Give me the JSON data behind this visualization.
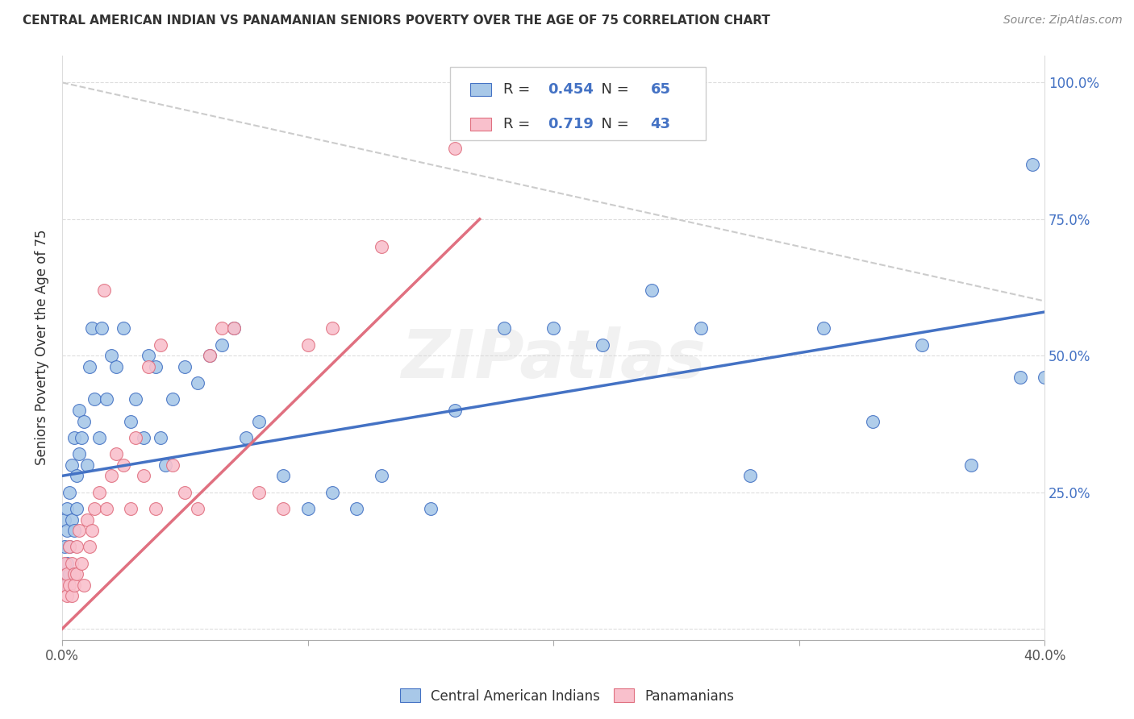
{
  "title": "CENTRAL AMERICAN INDIAN VS PANAMANIAN SENIORS POVERTY OVER THE AGE OF 75 CORRELATION CHART",
  "source": "Source: ZipAtlas.com",
  "ylabel": "Seniors Poverty Over the Age of 75",
  "xlim": [
    0.0,
    0.4
  ],
  "ylim": [
    -0.02,
    1.05
  ],
  "x_ticks": [
    0.0,
    0.1,
    0.2,
    0.3,
    0.4
  ],
  "y_ticks": [
    0.0,
    0.25,
    0.5,
    0.75,
    1.0
  ],
  "y_tick_labels": [
    "",
    "25.0%",
    "50.0%",
    "75.0%",
    "100.0%"
  ],
  "blue_color": "#a8c8e8",
  "blue_edge_color": "#4472c4",
  "pink_color": "#f9c0cc",
  "pink_edge_color": "#e07080",
  "blue_line_color": "#4472c4",
  "pink_line_color": "#e07080",
  "diagonal_color": "#cccccc",
  "R_blue": 0.454,
  "N_blue": 65,
  "R_pink": 0.719,
  "N_pink": 43,
  "watermark": "ZIPatlas",
  "blue_scatter_x": [
    0.001,
    0.001,
    0.001,
    0.002,
    0.002,
    0.002,
    0.002,
    0.003,
    0.003,
    0.003,
    0.004,
    0.004,
    0.005,
    0.005,
    0.006,
    0.006,
    0.007,
    0.007,
    0.008,
    0.009,
    0.01,
    0.011,
    0.012,
    0.013,
    0.015,
    0.016,
    0.018,
    0.02,
    0.022,
    0.025,
    0.028,
    0.03,
    0.033,
    0.035,
    0.038,
    0.04,
    0.042,
    0.045,
    0.05,
    0.055,
    0.06,
    0.065,
    0.07,
    0.075,
    0.08,
    0.09,
    0.1,
    0.11,
    0.12,
    0.13,
    0.15,
    0.16,
    0.18,
    0.2,
    0.22,
    0.24,
    0.26,
    0.28,
    0.31,
    0.33,
    0.35,
    0.37,
    0.39,
    0.395,
    0.4
  ],
  "blue_scatter_y": [
    0.15,
    0.2,
    0.1,
    0.18,
    0.22,
    0.12,
    0.08,
    0.25,
    0.15,
    0.1,
    0.3,
    0.2,
    0.35,
    0.18,
    0.28,
    0.22,
    0.4,
    0.32,
    0.35,
    0.38,
    0.3,
    0.48,
    0.55,
    0.42,
    0.35,
    0.55,
    0.42,
    0.5,
    0.48,
    0.55,
    0.38,
    0.42,
    0.35,
    0.5,
    0.48,
    0.35,
    0.3,
    0.42,
    0.48,
    0.45,
    0.5,
    0.52,
    0.55,
    0.35,
    0.38,
    0.28,
    0.22,
    0.25,
    0.22,
    0.28,
    0.22,
    0.4,
    0.55,
    0.55,
    0.52,
    0.62,
    0.55,
    0.28,
    0.55,
    0.38,
    0.52,
    0.3,
    0.46,
    0.85,
    0.46
  ],
  "pink_scatter_x": [
    0.001,
    0.001,
    0.002,
    0.002,
    0.003,
    0.003,
    0.004,
    0.004,
    0.005,
    0.005,
    0.006,
    0.006,
    0.007,
    0.008,
    0.009,
    0.01,
    0.011,
    0.012,
    0.013,
    0.015,
    0.017,
    0.018,
    0.02,
    0.022,
    0.025,
    0.028,
    0.03,
    0.033,
    0.035,
    0.038,
    0.04,
    0.045,
    0.05,
    0.055,
    0.06,
    0.065,
    0.07,
    0.08,
    0.09,
    0.1,
    0.11,
    0.13,
    0.16
  ],
  "pink_scatter_y": [
    0.08,
    0.12,
    0.1,
    0.06,
    0.15,
    0.08,
    0.12,
    0.06,
    0.1,
    0.08,
    0.15,
    0.1,
    0.18,
    0.12,
    0.08,
    0.2,
    0.15,
    0.18,
    0.22,
    0.25,
    0.62,
    0.22,
    0.28,
    0.32,
    0.3,
    0.22,
    0.35,
    0.28,
    0.48,
    0.22,
    0.52,
    0.3,
    0.25,
    0.22,
    0.5,
    0.55,
    0.55,
    0.25,
    0.22,
    0.52,
    0.55,
    0.7,
    0.88
  ],
  "blue_trend_x0": 0.0,
  "blue_trend_x1": 0.4,
  "blue_trend_y0": 0.28,
  "blue_trend_y1": 0.58,
  "pink_trend_x0": 0.0,
  "pink_trend_x1": 0.17,
  "pink_trend_y0": 0.0,
  "pink_trend_y1": 0.75
}
